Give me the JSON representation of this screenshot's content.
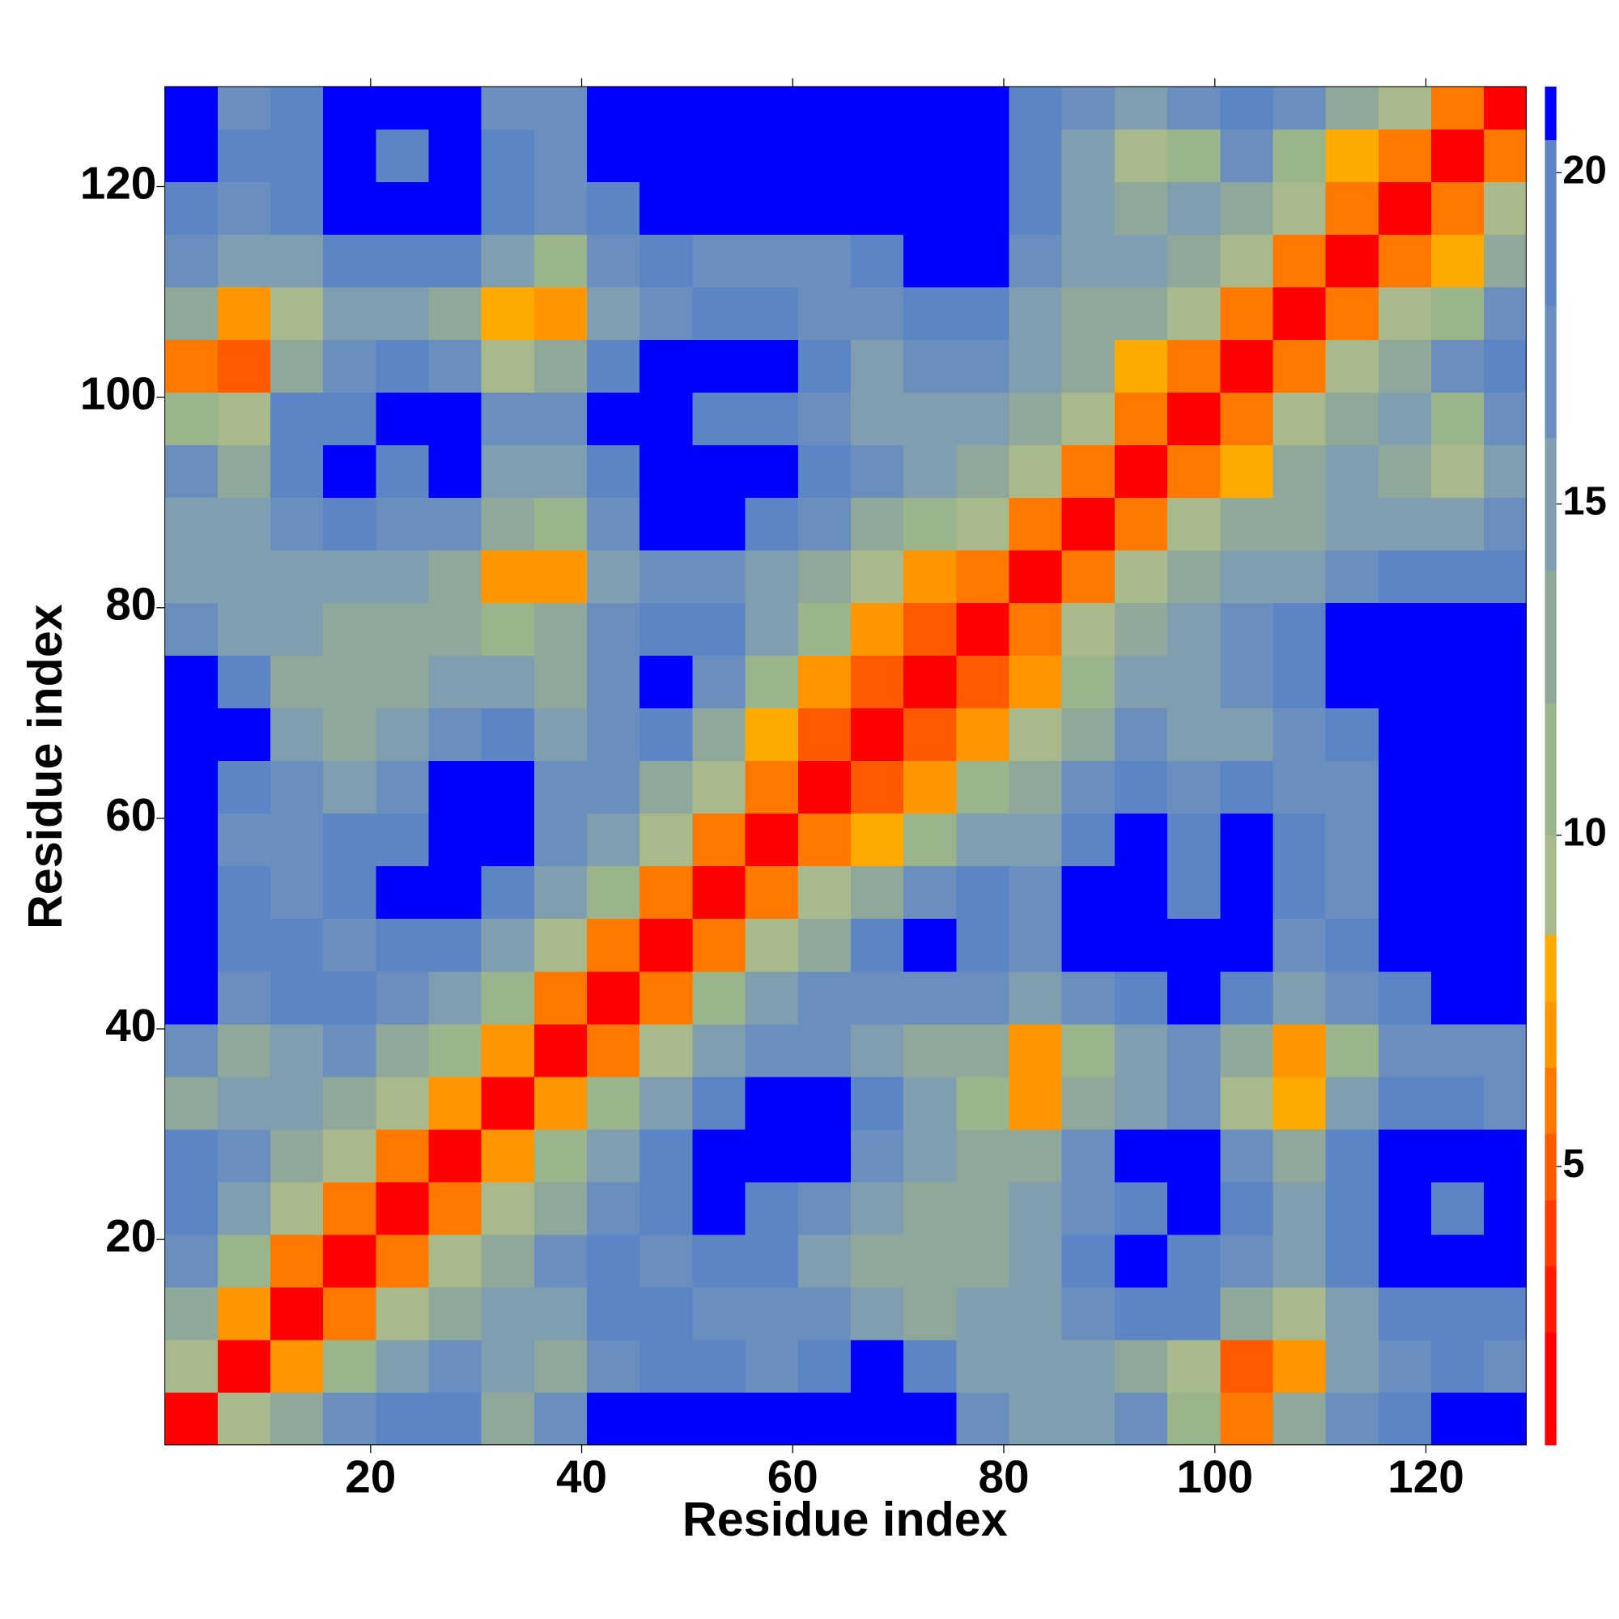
{
  "chart_data": {
    "type": "heatmap",
    "symmetric": true,
    "x_label": "Residue index",
    "y_label": "Residue index",
    "xlim": [
      0.5,
      129.5
    ],
    "ylim": [
      0.5,
      129.5
    ],
    "xticks": [
      20,
      40,
      60,
      80,
      100,
      120
    ],
    "yticks": [
      20,
      40,
      60,
      80,
      100,
      120
    ],
    "bins": [
      0.5,
      5.5,
      10.5,
      15.5,
      20.5,
      25.5,
      30.5,
      35.5,
      40.5,
      45.5,
      50.5,
      55.5,
      60.5,
      65.5,
      70.5,
      75.5,
      80.5,
      85.5,
      90.5,
      95.5,
      100.5,
      105.5,
      110.5,
      115.5,
      120.5,
      125.5,
      129.5
    ],
    "values": [
      [
        2,
        9,
        13,
        17,
        20,
        18,
        13,
        16,
        21,
        21,
        21,
        21,
        21,
        21,
        21,
        17,
        15,
        15,
        16,
        10,
        6,
        12,
        16,
        19,
        21,
        21
      ],
      [
        2,
        7,
        11,
        14,
        16,
        14,
        13,
        16,
        18,
        18,
        17,
        20,
        21,
        18,
        15,
        14,
        14,
        12,
        9,
        5,
        7,
        14,
        17,
        18,
        16
      ],
      [
        2,
        6,
        9,
        12,
        15,
        15,
        20,
        19,
        17,
        16,
        16,
        14,
        13,
        14,
        15,
        17,
        20,
        18,
        12,
        9,
        14,
        19,
        20,
        18
      ],
      [
        2,
        6,
        9,
        12,
        16,
        18,
        17,
        20,
        18,
        15,
        13,
        12,
        13,
        15,
        19,
        21,
        20,
        17,
        14,
        18,
        21,
        21,
        21
      ],
      [
        2,
        6,
        9,
        13,
        17,
        20,
        21,
        19,
        16,
        14,
        13,
        12,
        14,
        16,
        20,
        21,
        18,
        15,
        20,
        21,
        20,
        21
      ],
      [
        2,
        7,
        10,
        14,
        19,
        21,
        21,
        21,
        17,
        14,
        12,
        13,
        16,
        21,
        21,
        16,
        13,
        19,
        21,
        21,
        21
      ],
      [
        2,
        7,
        10,
        14,
        19,
        21,
        21,
        18,
        14,
        10,
        7,
        12,
        15,
        16,
        9,
        8,
        14,
        19,
        18,
        17
      ],
      [
        2,
        6,
        9,
        14,
        17,
        16,
        14,
        13,
        12,
        7,
        11,
        15,
        16,
        12,
        7,
        10,
        16,
        17,
        17
      ],
      [
        2,
        6,
        10,
        14,
        16,
        17,
        17,
        16,
        14,
        16,
        20,
        21,
        19,
        15,
        16,
        20,
        21,
        21
      ],
      [
        2,
        6,
        9,
        13,
        18,
        21,
        20,
        17,
        21,
        21,
        21,
        21,
        17,
        18,
        21,
        21,
        21
      ],
      [
        2,
        6,
        9,
        12,
        17,
        19,
        16,
        21,
        21,
        19,
        21,
        19,
        17,
        21,
        21,
        21
      ],
      [
        2,
        6,
        8,
        11,
        14,
        15,
        20,
        21,
        18,
        21,
        18,
        16,
        21,
        21,
        21
      ],
      [
        2,
        5,
        7,
        10,
        13,
        16,
        19,
        17,
        20,
        16,
        17,
        21,
        21,
        21
      ],
      [
        2,
        5,
        7,
        9,
        13,
        16,
        15,
        15,
        16,
        18,
        21,
        21,
        21
      ],
      [
        2,
        5,
        7,
        11,
        14,
        15,
        16,
        19,
        21,
        21,
        21,
        21
      ],
      [
        2,
        6,
        9,
        12,
        14,
        16,
        18,
        21,
        21,
        21,
        21
      ],
      [
        2,
        6,
        9,
        12,
        14,
        15,
        17,
        18,
        19,
        20
      ],
      [
        2,
        6,
        9,
        12,
        13,
        15,
        15,
        14,
        17
      ],
      [
        2,
        6,
        8,
        12,
        14,
        12,
        9,
        15
      ],
      [
        2,
        6,
        9,
        12,
        14,
        11,
        16
      ],
      [
        2,
        6,
        9,
        12,
        16,
        19
      ],
      [
        2,
        6,
        9,
        11,
        16
      ],
      [
        2,
        6,
        8,
        12
      ],
      [
        2,
        6,
        9
      ],
      [
        2,
        6
      ],
      [
        2
      ]
    ],
    "colorbar": {
      "levels": [
        0.8,
        2.5,
        3.5,
        4.5,
        5.5,
        6.5,
        7.5,
        8.5,
        10,
        12,
        14,
        16,
        18,
        20.5,
        21.3
      ],
      "colors": [
        "#ff0000",
        "#ff1a00",
        "#ff3c00",
        "#ff5a00",
        "#ff7800",
        "#ff9600",
        "#ffaa00",
        "#a8b98c",
        "#9ab58c",
        "#8fa89a",
        "#7f9fb0",
        "#6a8fbf",
        "#5b85c4",
        "#0000ff"
      ],
      "ticks": [
        5,
        10,
        15,
        20
      ]
    }
  }
}
